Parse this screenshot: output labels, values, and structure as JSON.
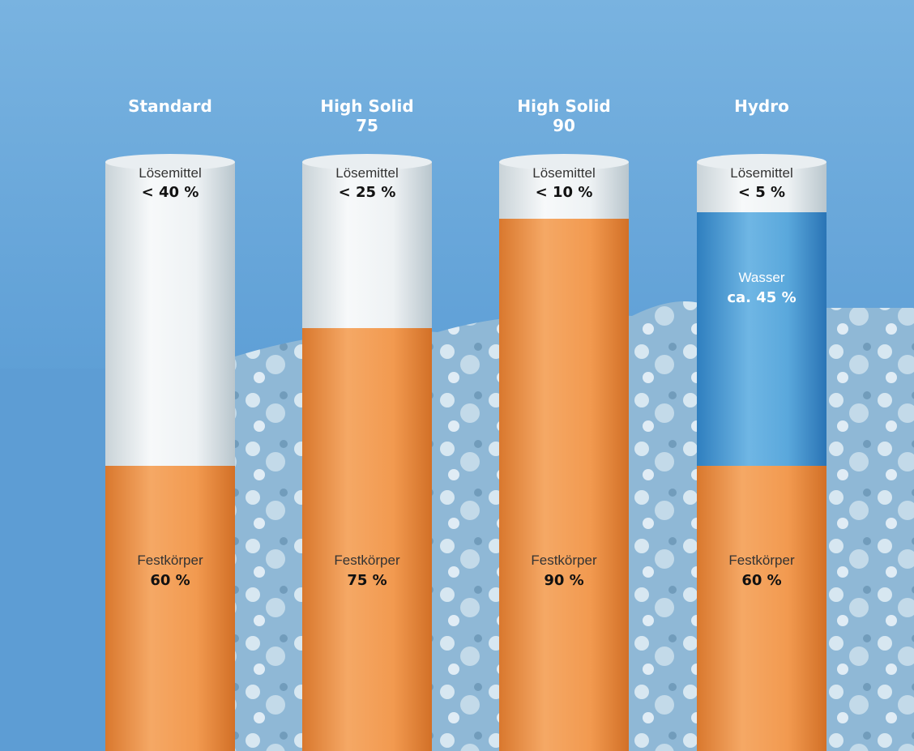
{
  "columns": [
    {
      "title": [
        "Standard"
      ],
      "top_label": "Lösemittel",
      "top_value": "< 40 %",
      "bottom_label": "Festkörper",
      "bottom_value": "60 %"
    },
    {
      "title": [
        "High Solid",
        "75"
      ],
      "top_label": "Lösemittel",
      "top_value": "< 25 %",
      "bottom_label": "Festkörper",
      "bottom_value": "75 %"
    },
    {
      "title": [
        "High Solid",
        "90"
      ],
      "top_label": "Lösemittel",
      "top_value": "< 10 %",
      "bottom_label": "Festkörper",
      "bottom_value": "90 %"
    },
    {
      "title": [
        "Hydro"
      ],
      "top_label": "Lösemittel",
      "top_value": "< 5 %",
      "middle_label": "Wasser",
      "middle_value": "ca. 45 %",
      "bottom_label": "Festkörper",
      "bottom_value": "60 %"
    }
  ]
}
